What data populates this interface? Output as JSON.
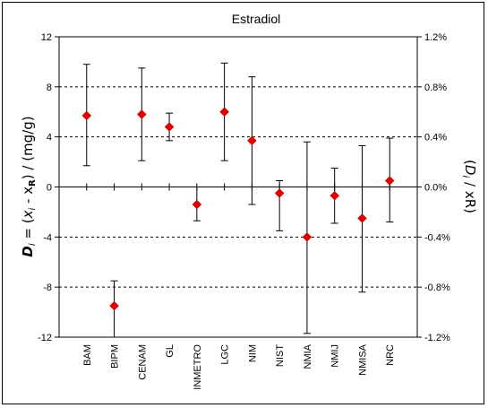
{
  "chart_data": {
    "type": "scatter",
    "title": "Estradiol",
    "ylabel_left": "Di = (xi - xR) / (mg/g)",
    "ylabel_right": "(Di / xR)",
    "ylim": [
      -12,
      12
    ],
    "yticks_left": [
      "12",
      "8",
      "4",
      "0",
      "-4",
      "-8",
      "-12"
    ],
    "yticks_right": [
      "1.2%",
      "0.8%",
      "0.4%",
      "0.0%",
      "-0.4%",
      "-0.8%",
      "-1.2%"
    ],
    "grid": "dashed horizontal at 8, 4, -4, -8",
    "categories": [
      "BAM",
      "BIPM",
      "CENAM",
      "GL",
      "INMETRO",
      "LGC",
      "NIM",
      "NIST",
      "NMIA",
      "NMIJ",
      "NMISA",
      "NRC"
    ],
    "values": [
      5.7,
      -9.5,
      5.8,
      4.8,
      -1.4,
      6.0,
      3.7,
      -0.5,
      -4.0,
      -0.7,
      -2.5,
      0.5
    ],
    "error_low": [
      1.7,
      -12.0,
      2.1,
      3.7,
      -2.7,
      2.1,
      -1.4,
      -3.5,
      -11.7,
      -2.9,
      -8.4,
      -2.8
    ],
    "error_high": [
      9.8,
      -7.5,
      9.5,
      5.9,
      0.0,
      9.9,
      8.8,
      0.5,
      3.6,
      1.5,
      3.3,
      3.9
    ],
    "marker_color": "#dd0000"
  }
}
